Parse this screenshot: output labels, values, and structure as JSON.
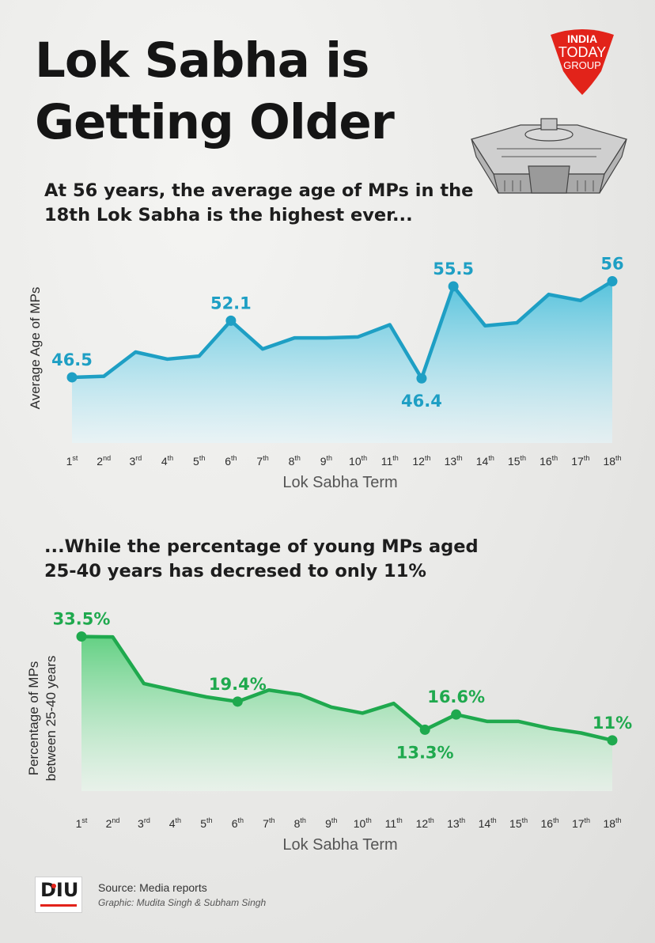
{
  "title": {
    "line1": "Lok Sabha is",
    "line2": "Getting Older"
  },
  "logo": {
    "line1": "INDIA",
    "line2": "TODAY",
    "line3": "GROUP"
  },
  "chart_data": [
    {
      "type": "area",
      "subtitle_line1": "At 56 years, the average age of MPs in the",
      "subtitle_line2": "18th Lok Sabha is the highest ever...",
      "ylabel": "Average Age of MPs",
      "xlabel": "Lok Sabha Term",
      "categories": [
        {
          "num": "1",
          "sup": "st"
        },
        {
          "num": "2",
          "sup": "nd"
        },
        {
          "num": "3",
          "sup": "rd"
        },
        {
          "num": "4",
          "sup": "th"
        },
        {
          "num": "5",
          "sup": "th"
        },
        {
          "num": "6",
          "sup": "th"
        },
        {
          "num": "7",
          "sup": "th"
        },
        {
          "num": "8",
          "sup": "th"
        },
        {
          "num": "9",
          "sup": "th"
        },
        {
          "num": "10",
          "sup": "th"
        },
        {
          "num": "11",
          "sup": "th"
        },
        {
          "num": "12",
          "sup": "th"
        },
        {
          "num": "13",
          "sup": "th"
        },
        {
          "num": "14",
          "sup": "th"
        },
        {
          "num": "15",
          "sup": "th"
        },
        {
          "num": "16",
          "sup": "th"
        },
        {
          "num": "17",
          "sup": "th"
        },
        {
          "num": "18",
          "sup": "th"
        }
      ],
      "values": [
        46.5,
        46.6,
        49.0,
        48.3,
        48.6,
        52.1,
        49.3,
        50.4,
        50.4,
        50.5,
        51.7,
        46.4,
        55.5,
        51.6,
        51.9,
        54.7,
        54.1,
        56.0
      ],
      "ylim": [
        40,
        58
      ],
      "labels": [
        {
          "index": 0,
          "text": "46.5",
          "pos": "above"
        },
        {
          "index": 5,
          "text": "52.1",
          "pos": "above"
        },
        {
          "index": 11,
          "text": "46.4",
          "pos": "below"
        },
        {
          "index": 12,
          "text": "55.5",
          "pos": "above"
        },
        {
          "index": 17,
          "text": "56",
          "pos": "above"
        }
      ],
      "color": "#1e9fc4",
      "fill_top": "#4fc1dc",
      "fill_bottom": "#e4f5fa"
    },
    {
      "type": "area",
      "subtitle_line1": "...While the percentage of young MPs aged",
      "subtitle_line2": "25-40 years has decresed to only 11%",
      "ylabel_line1": "Percentage of MPs",
      "ylabel_line2": "between 25-40 years",
      "xlabel": "Lok Sabha Term",
      "categories": [
        {
          "num": "1",
          "sup": "st"
        },
        {
          "num": "2",
          "sup": "nd"
        },
        {
          "num": "3",
          "sup": "rd"
        },
        {
          "num": "4",
          "sup": "th"
        },
        {
          "num": "5",
          "sup": "th"
        },
        {
          "num": "6",
          "sup": "th"
        },
        {
          "num": "7",
          "sup": "th"
        },
        {
          "num": "8",
          "sup": "th"
        },
        {
          "num": "9",
          "sup": "th"
        },
        {
          "num": "10",
          "sup": "th"
        },
        {
          "num": "11",
          "sup": "th"
        },
        {
          "num": "12",
          "sup": "th"
        },
        {
          "num": "13",
          "sup": "th"
        },
        {
          "num": "14",
          "sup": "th"
        },
        {
          "num": "15",
          "sup": "th"
        },
        {
          "num": "16",
          "sup": "th"
        },
        {
          "num": "17",
          "sup": "th"
        },
        {
          "num": "18",
          "sup": "th"
        }
      ],
      "values": [
        33.5,
        33.4,
        23.3,
        21.8,
        20.4,
        19.4,
        21.9,
        20.9,
        18.2,
        16.9,
        19.0,
        13.3,
        16.6,
        15.1,
        15.1,
        13.6,
        12.6,
        11.0
      ],
      "ylim": [
        0,
        36
      ],
      "labels": [
        {
          "index": 0,
          "text": "33.5%",
          "pos": "above"
        },
        {
          "index": 5,
          "text": "19.4%",
          "pos": "above"
        },
        {
          "index": 11,
          "text": "13.3%",
          "pos": "below"
        },
        {
          "index": 12,
          "text": "16.6%",
          "pos": "above"
        },
        {
          "index": 17,
          "text": "11%",
          "pos": "above"
        }
      ],
      "color": "#1fa94e",
      "fill_top": "#5ccf7e",
      "fill_bottom": "#e8f7ec"
    }
  ],
  "footer": {
    "logo_text": "DIU",
    "source": "Source: Media reports",
    "credit": "Graphic: Mudita Singh & Subham Singh"
  }
}
